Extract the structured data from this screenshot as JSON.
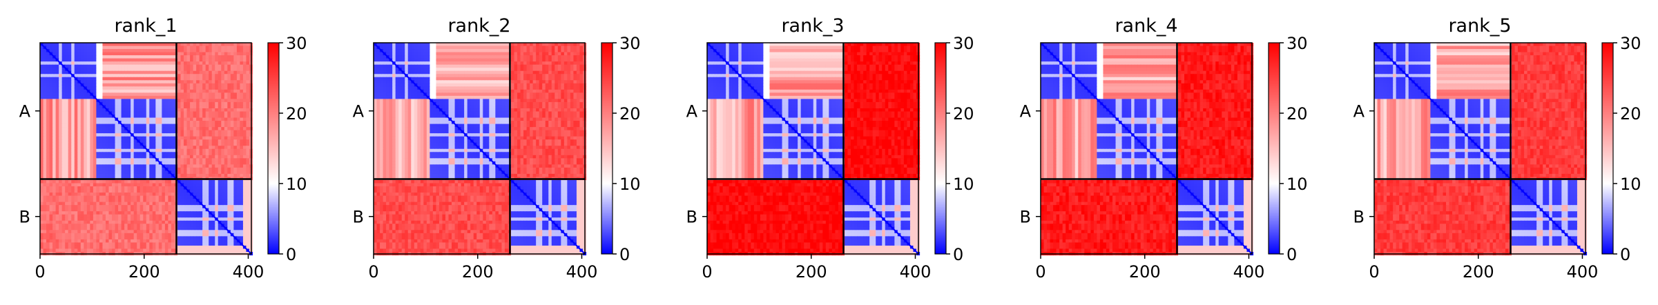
{
  "chart_data": {
    "type": "heatmap",
    "colormap": {
      "low": "#0000ff",
      "mid": "#ffffff",
      "high": "#ff0000"
    },
    "colorbar": {
      "range": [
        0,
        30
      ],
      "ticks": [
        0,
        10,
        20,
        30
      ]
    },
    "x_range": [
      0,
      406
    ],
    "xticks": [
      0,
      200,
      400
    ],
    "chain_boundary": 262,
    "chain_labels": [
      "A",
      "B"
    ],
    "panels": [
      {
        "title": "rank_1",
        "mean_inter": 22,
        "variant": 0
      },
      {
        "title": "rank_2",
        "mean_inter": 24,
        "variant": 1
      },
      {
        "title": "rank_3",
        "mean_inter": 28,
        "variant": 2
      },
      {
        "title": "rank_4",
        "mean_inter": 27,
        "variant": 3
      },
      {
        "title": "rank_5",
        "mean_inter": 25,
        "variant": 4
      }
    ],
    "intra_domain_structure": {
      "chain_A_blocks": [
        [
          0,
          110
        ],
        [
          110,
          262
        ]
      ],
      "chain_B_blocks": [
        [
          262,
          406
        ]
      ],
      "low_error_value": 3,
      "cross_domain_value": 24
    }
  }
}
